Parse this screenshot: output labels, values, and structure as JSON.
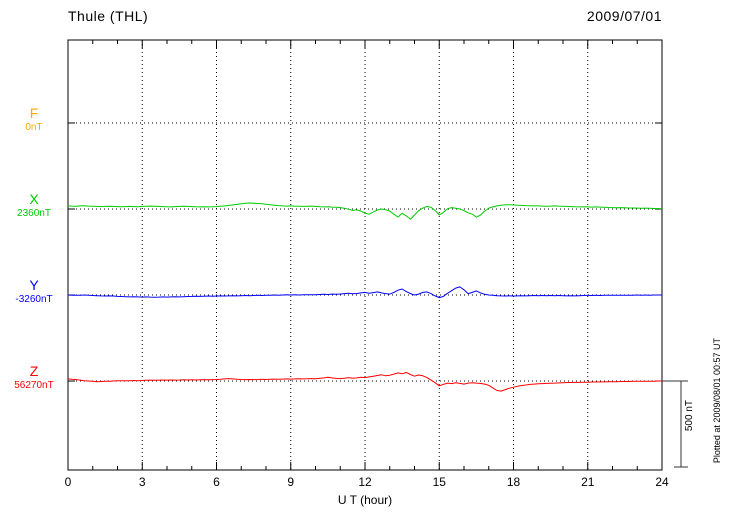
{
  "header": {
    "station": "Thule (THL)",
    "date": "2009/07/01"
  },
  "axis": {
    "x_ticks": [
      "0",
      "3",
      "6",
      "9",
      "12",
      "15",
      "18",
      "21",
      "24"
    ],
    "x_label": "U T (hour)"
  },
  "left_labels": [
    {
      "symbol": "F",
      "value": "0nT"
    },
    {
      "symbol": "X",
      "value": "2360nT"
    },
    {
      "symbol": "Y",
      "value": "-3260nT"
    },
    {
      "symbol": "Z",
      "value": "56270nT"
    }
  ],
  "scale_bar": {
    "label": "500 nT",
    "nT": 500
  },
  "footer_note": "Plotted at 2009/08/01 00:57 UT",
  "colors": {
    "F": "#ffaa00",
    "X": "#00cc00",
    "Y": "#0000ff",
    "Z": "#ff0000",
    "grid": "#000000"
  },
  "chart_data": {
    "type": "line",
    "title": "Thule (THL) magnetogram 2009/07/01",
    "xlabel": "U T (hour)",
    "x_range_hours": [
      0,
      24
    ],
    "x_tick_step_hours": 3,
    "sample_interval_minutes": 10,
    "grid": "dotted",
    "scale_division_nT": 500,
    "series": [
      {
        "name": "F",
        "baseline_nT": 0,
        "color": "#ffaa00",
        "values_offset_nT": []
      },
      {
        "name": "X",
        "baseline_nT": 2360,
        "color": "#00cc00",
        "values_offset_nT": [
          18,
          17,
          16,
          18,
          19,
          17,
          16,
          15,
          14,
          15,
          16,
          15,
          14,
          13,
          14,
          15,
          14,
          13,
          15,
          16,
          17,
          16,
          15,
          14,
          13,
          12,
          14,
          15,
          16,
          15,
          14,
          13,
          12,
          13,
          12,
          13,
          14,
          16,
          18,
          21,
          24,
          27,
          30,
          33,
          35,
          34,
          32,
          30,
          28,
          25,
          22,
          20,
          18,
          17,
          18,
          17,
          16,
          15,
          16,
          17,
          15,
          13,
          12,
          13,
          11,
          10,
          8,
          4,
          -2,
          -8,
          -5,
          -12,
          -25,
          -30,
          -18,
          -6,
          0,
          -4,
          -12,
          -30,
          -47,
          -25,
          -40,
          -59,
          -35,
          -10,
          5,
          15,
          10,
          -8,
          -35,
          -20,
          2,
          8,
          4,
          0,
          -10,
          -22,
          -30,
          -47,
          -35,
          -12,
          5,
          12,
          18,
          22,
          24,
          25,
          24,
          22,
          21,
          20,
          19,
          18,
          18,
          17,
          16,
          17,
          18,
          17,
          16,
          15,
          14,
          13,
          12,
          13,
          12,
          11,
          12,
          11,
          10,
          9,
          8,
          7,
          8,
          7,
          6,
          6,
          5,
          4,
          5,
          4,
          3,
          3,
          2
        ]
      },
      {
        "name": "Y",
        "baseline_nT": -3260,
        "color": "#0000ff",
        "values_offset_nT": [
          0,
          -1,
          -2,
          -1,
          0,
          -2,
          -3,
          -4,
          -5,
          -6,
          -5,
          -6,
          -8,
          -9,
          -10,
          -11,
          -10,
          -11,
          -12,
          -11,
          -12,
          -13,
          -12,
          -11,
          -12,
          -11,
          -10,
          -11,
          -10,
          -9,
          -8,
          -7,
          -8,
          -7,
          -6,
          -7,
          -6,
          -5,
          -6,
          -5,
          -4,
          -5,
          -4,
          -3,
          -4,
          -3,
          -2,
          -3,
          -2,
          -1,
          0,
          -1,
          0,
          1,
          0,
          1,
          0,
          1,
          2,
          1,
          2,
          3,
          4,
          3,
          5,
          4,
          6,
          8,
          10,
          7,
          9,
          12,
          15,
          10,
          14,
          18,
          12,
          8,
          5,
          15,
          28,
          35,
          20,
          8,
          0,
          5,
          15,
          18,
          8,
          -5,
          -15,
          -8,
          10,
          25,
          40,
          47,
          30,
          8,
          15,
          24,
          12,
          4,
          0,
          -2,
          -4,
          -5,
          -6,
          -5,
          -6,
          -5,
          -4,
          -5,
          -4,
          -3,
          -4,
          -3,
          -4,
          -3,
          -4,
          -3,
          -4,
          -5,
          -4,
          -5,
          -4,
          -3,
          -2,
          -3,
          -2,
          -3,
          -2,
          -2,
          -1,
          -2,
          -1,
          -2,
          -1,
          -1,
          0,
          -1,
          0,
          -1,
          0,
          0,
          0
        ]
      },
      {
        "name": "Z",
        "baseline_nT": 56270,
        "color": "#ff0000",
        "values_offset_nT": [
          12,
          10,
          8,
          5,
          2,
          0,
          -2,
          -4,
          -3,
          -2,
          -1,
          0,
          1,
          2,
          1,
          2,
          3,
          2,
          3,
          4,
          5,
          4,
          5,
          6,
          5,
          6,
          5,
          6,
          7,
          6,
          7,
          6,
          7,
          8,
          7,
          8,
          9,
          10,
          12,
          14,
          12,
          10,
          9,
          8,
          9,
          8,
          9,
          10,
          9,
          10,
          11,
          10,
          11,
          12,
          11,
          12,
          13,
          12,
          13,
          14,
          13,
          15,
          18,
          22,
          18,
          15,
          14,
          16,
          20,
          16,
          18,
          22,
          20,
          24,
          28,
          32,
          36,
          30,
          34,
          40,
          47,
          42,
          50,
          38,
          28,
          35,
          30,
          20,
          5,
          -10,
          -28,
          -20,
          -12,
          -15,
          -10,
          -14,
          -18,
          -12,
          -10,
          -12,
          -14,
          -18,
          -25,
          -40,
          -55,
          -59,
          -50,
          -42,
          -36,
          -30,
          -26,
          -23,
          -20,
          -18,
          -16,
          -15,
          -14,
          -13,
          -12,
          -11,
          -10,
          -9,
          -9,
          -8,
          -8,
          -7,
          -7,
          -6,
          -6,
          -5,
          -5,
          -4,
          -4,
          -4,
          -3,
          -3,
          -3,
          -2,
          -2,
          -2,
          -1,
          -1,
          -1,
          0,
          0
        ]
      }
    ]
  }
}
